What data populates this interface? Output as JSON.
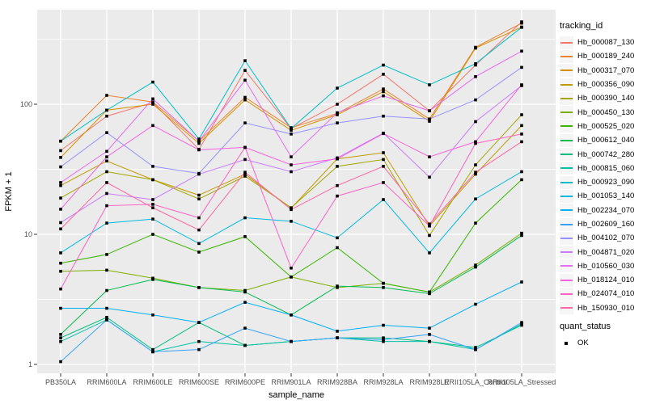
{
  "chart_data": {
    "type": "line",
    "title": "",
    "xlabel": "sample_name",
    "ylabel": "FPKM + 1",
    "y_scale": "log10",
    "y_ticks": [
      1,
      10,
      100
    ],
    "y_minor_ticks": [
      3.162,
      31.62,
      316.2
    ],
    "ylim": [
      0.95,
      535
    ],
    "grid": "on",
    "panel_bg": "#ebebeb",
    "grid_color": "#ffffff",
    "point_shape": "filled-square",
    "point_color": "#000000",
    "legend_position": "right",
    "legend_titles": {
      "series": "tracking_id",
      "shape": "quant_status"
    },
    "quant_status_entries": [
      {
        "label": "OK"
      }
    ],
    "categories": [
      "PB350LA",
      "RRIM600LA",
      "RRIM600LE",
      "RRIM600SE",
      "RRIM600PE",
      "RRIM901LA",
      "RRIM928BA",
      "RRIM928LA",
      "RRIM928LE",
      "RRII105LA_Control",
      "RRII105LA_Stressed"
    ],
    "series": [
      {
        "name": "Hb_000087_130",
        "color": "#F8766D",
        "values": [
          44,
          81,
          103,
          45,
          182,
          65,
          100,
          170,
          89,
          200,
          430
        ]
      },
      {
        "name": "Hb_000189_240",
        "color": "#EA8331",
        "values": [
          52,
          117,
          104,
          52,
          113,
          66,
          85,
          131,
          77,
          274,
          420
        ]
      },
      {
        "name": "Hb_000317_070",
        "color": "#D89000",
        "values": [
          39,
          90,
          100,
          50,
          108,
          63,
          83,
          125,
          74,
          270,
          392
        ]
      },
      {
        "name": "Hb_000356_090",
        "color": "#C09B00",
        "values": [
          23.7,
          36.6,
          26.3,
          20,
          29,
          15.9,
          38,
          42.4,
          11.6,
          29,
          68.6
        ]
      },
      {
        "name": "Hb_000390_140",
        "color": "#A3A500",
        "values": [
          19,
          30.3,
          26.3,
          18.7,
          28,
          16,
          33.3,
          37.6,
          9.8,
          34.2,
          83
        ]
      },
      {
        "name": "Hb_000450_130",
        "color": "#7CAE00",
        "values": [
          5.2,
          5.3,
          4.6,
          3.9,
          3.7,
          4.7,
          3.9,
          4.2,
          3.6,
          5.8,
          10.2
        ]
      },
      {
        "name": "Hb_000525_020",
        "color": "#39B600",
        "values": [
          6.0,
          7.0,
          10.0,
          7.3,
          9.6,
          4.7,
          7.9,
          4.2,
          3.6,
          12.2,
          26.3
        ]
      },
      {
        "name": "Hb_000612_040",
        "color": "#00BB4E",
        "values": [
          1.7,
          3.7,
          4.5,
          3.9,
          3.6,
          2.4,
          4.0,
          3.9,
          3.5,
          5.6,
          9.8
        ]
      },
      {
        "name": "Hb_000742_280",
        "color": "#00BF7D",
        "values": [
          1.6,
          2.3,
          1.3,
          2.1,
          1.4,
          1.5,
          1.6,
          1.6,
          1.5,
          1.35,
          2.0
        ]
      },
      {
        "name": "Hb_000815_060",
        "color": "#00C1A3",
        "values": [
          1.5,
          2.2,
          1.25,
          1.5,
          1.4,
          1.5,
          1.6,
          1.5,
          1.5,
          1.3,
          2.05
        ]
      },
      {
        "name": "Hb_000923_090",
        "color": "#00BFC4",
        "values": [
          52,
          90,
          148,
          54,
          216,
          65,
          133,
          200,
          141,
          205,
          390
        ]
      },
      {
        "name": "Hb_001053_140",
        "color": "#00BAE0",
        "values": [
          7.2,
          12.2,
          13.1,
          8.5,
          13.4,
          12.6,
          9.4,
          18.5,
          7.2,
          18.7,
          30.3
        ]
      },
      {
        "name": "Hb_002234_070",
        "color": "#00B0F6",
        "values": [
          2.7,
          2.7,
          2.4,
          2.1,
          3.0,
          2.4,
          1.8,
          2.0,
          1.9,
          2.9,
          4.3
        ]
      },
      {
        "name": "Hb_002609_160",
        "color": "#35A2FF",
        "values": [
          1.05,
          2.2,
          1.25,
          1.3,
          1.9,
          1.5,
          1.6,
          1.55,
          1.7,
          1.3,
          2.1
        ]
      },
      {
        "name": "Hb_004102_070",
        "color": "#9590FF",
        "values": [
          33,
          60.5,
          33.3,
          29.4,
          71.8,
          59,
          71.8,
          81,
          77,
          108,
          192
        ]
      },
      {
        "name": "Hb_004871_020",
        "color": "#C77CFF",
        "values": [
          12.3,
          20.6,
          18.5,
          29,
          37.6,
          30.3,
          38.7,
          60,
          27.5,
          73.5,
          139
        ]
      },
      {
        "name": "Hb_010560_030",
        "color": "#E76BF3",
        "values": [
          25,
          43.4,
          110,
          52,
          153,
          39.4,
          86,
          116,
          89,
          163,
          256
        ]
      },
      {
        "name": "Hb_018124_010",
        "color": "#FA62DB",
        "values": [
          15.6,
          39.4,
          68.6,
          44.6,
          46.6,
          34.2,
          38,
          59.5,
          39.4,
          51.5,
          141
        ]
      },
      {
        "name": "Hb_024074_010",
        "color": "#FF61C3",
        "values": [
          3.8,
          16.6,
          17.0,
          13.4,
          46.6,
          5.5,
          19.7,
          25,
          11.6,
          50,
          59
        ]
      },
      {
        "name": "Hb_150930_010",
        "color": "#FF67A4",
        "values": [
          11,
          25.0,
          16.0,
          10.8,
          30,
          15.5,
          23.7,
          33.3,
          12,
          30,
          51.5
        ]
      }
    ]
  }
}
